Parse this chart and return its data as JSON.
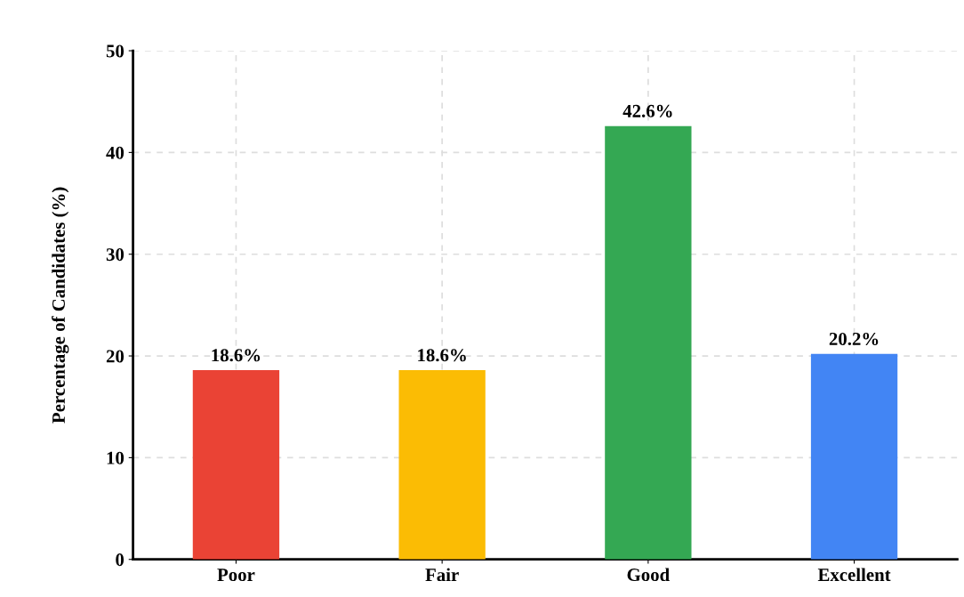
{
  "chart_data": {
    "type": "bar",
    "ylabel": "Percentage of Candidates (%)",
    "categories": [
      "Poor",
      "Fair",
      "Good",
      "Excellent"
    ],
    "values": [
      18.6,
      18.6,
      42.6,
      20.2
    ],
    "colors": [
      "#ea4335",
      "#fbbc04",
      "#34a853",
      "#4285f4"
    ],
    "value_labels": [
      "18.6%",
      "18.6%",
      "42.6%",
      "20.2%"
    ],
    "ylim": [
      0,
      50
    ],
    "yticks": [
      0,
      10,
      20,
      30,
      40,
      50
    ],
    "grid": true,
    "legend": false
  }
}
